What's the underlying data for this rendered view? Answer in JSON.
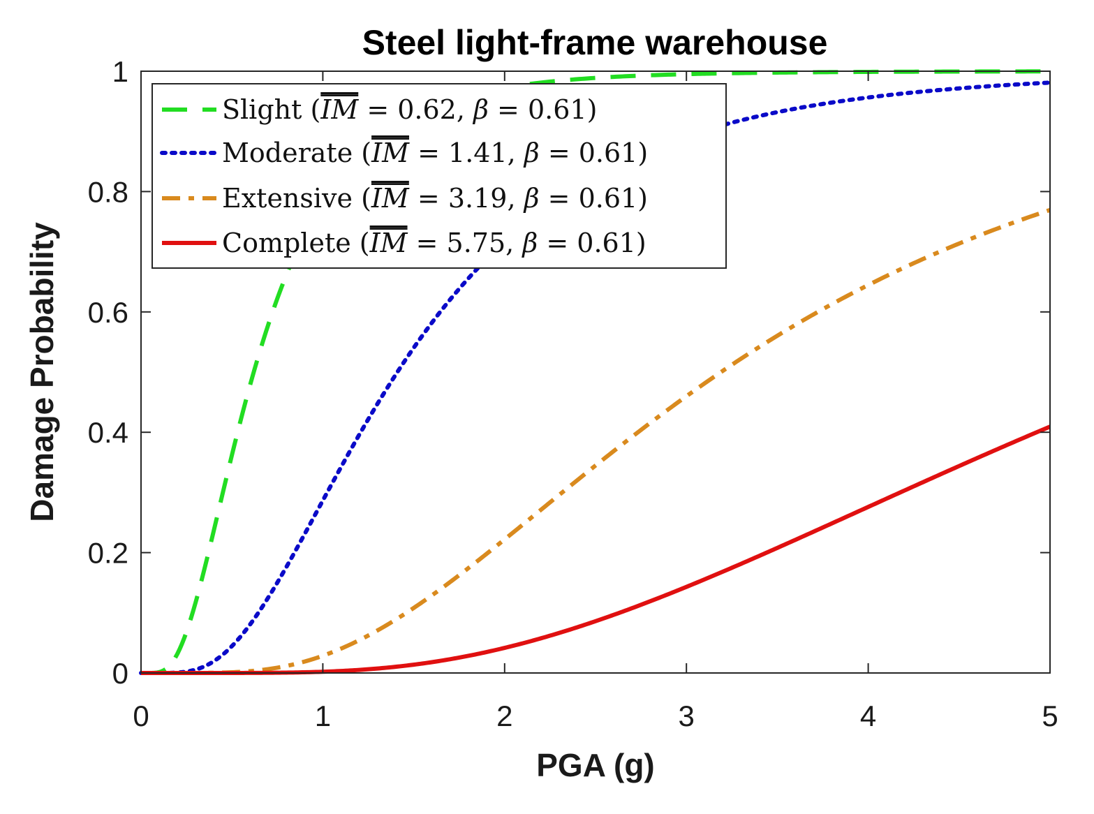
{
  "chart_data": {
    "type": "line",
    "title": "Steel light-frame warehouse",
    "xlabel": "PGA (g)",
    "ylabel": "Damage Probability",
    "xlim": [
      0,
      5
    ],
    "ylim": [
      0,
      1
    ],
    "xticks": [
      0,
      1,
      2,
      3,
      4,
      5
    ],
    "xtick_labels": [
      "0",
      "1",
      "2",
      "3",
      "4",
      "5"
    ],
    "yticks": [
      0,
      0.2,
      0.4,
      0.6,
      0.8,
      1
    ],
    "ytick_labels": [
      "0",
      "0.2",
      "0.4",
      "0.6",
      "0.8",
      "1"
    ],
    "grid": false,
    "legend_position": "top-left",
    "series": [
      {
        "name": "Slight",
        "median": 0.62,
        "beta": 0.61,
        "color": "#22dd22",
        "style": "dashed",
        "legend": {
          "prefix": "Slight (",
          "im": "IM",
          "median_text": " = 0.62, ",
          "beta_sym": "β",
          "beta_text": " = 0.61)"
        }
      },
      {
        "name": "Moderate",
        "median": 1.41,
        "beta": 0.61,
        "color": "#0a0ac8",
        "style": "dotted",
        "legend": {
          "prefix": "Moderate (",
          "im": "IM",
          "median_text": " = 1.41, ",
          "beta_sym": "β",
          "beta_text": " = 0.61)"
        }
      },
      {
        "name": "Extensive",
        "median": 3.19,
        "beta": 0.61,
        "color": "#d98a1e",
        "style": "dashdot",
        "legend": {
          "prefix": "Extensive (",
          "im": "IM",
          "median_text": " = 3.19, ",
          "beta_sym": "β",
          "beta_text": " = 0.61)"
        }
      },
      {
        "name": "Complete",
        "median": 5.75,
        "beta": 0.61,
        "color": "#e01010",
        "style": "solid",
        "legend": {
          "prefix": "Complete (",
          "im": "IM",
          "median_text": " = 5.75, ",
          "beta_sym": "β",
          "beta_text": " = 0.61)"
        }
      }
    ]
  }
}
